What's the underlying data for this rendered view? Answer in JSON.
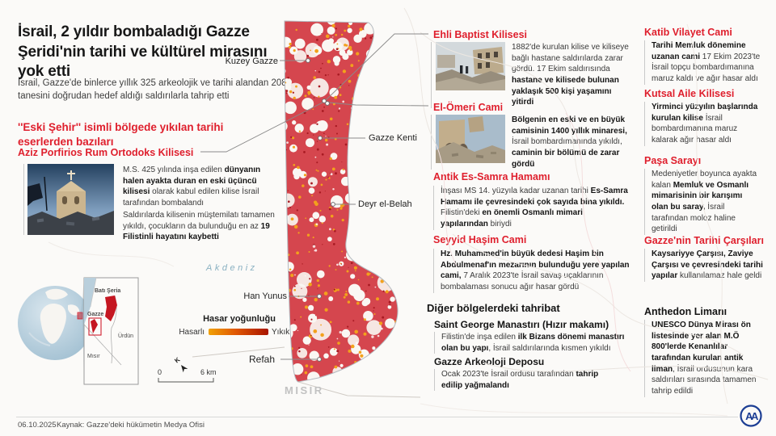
{
  "colors": {
    "accent_red": "#df1f2d",
    "map_red": "#d5464e",
    "damaged_orange": "#f3a11c",
    "destroyed_red": "#a81400",
    "aa_blue": "#1c3e94"
  },
  "header": {
    "title": "İsrail, 2 yıldır bombaladığı Gazze Şeridi'nin tarihi ve kültürel mirasını yok etti",
    "subtitle": "İsrail, Gazze'de binlerce yıllık 325 arkeolojik ve tarihi alandan 208 tanesini doğrudan hedef aldığı saldırılarla tahrip etti"
  },
  "old_city": {
    "heading": "''Eski Şehir'' isimli bölgede yıkılan tarihi eserlerden bazıları",
    "site_name": "Aziz Porfirios Rum Ortodoks Kilisesi",
    "p1": [
      {
        "t": "M.S. 425 yılında inşa edilen ",
        "b": false
      },
      {
        "t": "dünyanın halen ayakta duran en eski üçüncü kilisesi",
        "b": true
      },
      {
        "t": " olarak kabul edilen kilise İsrail tarafından bombalandı",
        "b": false
      }
    ],
    "p2": [
      {
        "t": "Saldırılarda kilisenin müştemilatı tamamen yıkıldı, çocukların da bulunduğu en az ",
        "b": false
      },
      {
        "t": "19 Filistinli hayatını kaybetti",
        "b": true
      }
    ]
  },
  "gaza_city_sites": {
    "ehli": {
      "name": "Ehli Baptist Kilisesi",
      "segments": [
        {
          "t": "1882'de kurulan kilise ve kiliseye bağlı hastane saldırılarda zarar gördü. 17 Ekim saldırısında ",
          "b": false
        },
        {
          "t": "hastane ve kilisede bulunan yaklaşık 500 kişi yaşamını yitirdi",
          "b": true
        }
      ]
    },
    "omeri": {
      "name": "El-Ömeri Cami",
      "segments": [
        {
          "t": "Bölgenin en eski ve en büyük camisinin 1400 yıllık minaresi,",
          "b": true
        },
        {
          "t": " İsrail bombardımanında yıkıldı, ",
          "b": false
        },
        {
          "t": "caminin bir bölümü de zarar gördü",
          "b": true
        }
      ]
    },
    "samra": {
      "name": "Antik Es-Samra Hamamı",
      "segments": [
        {
          "t": "İnşası MS 14. yüzyıla kadar uzanan tarihi ",
          "b": false
        },
        {
          "t": "Es-Samra Hamamı ile çevresindeki çok sayıda bina yıkıldı.",
          "b": true
        },
        {
          "t": " Filistin'deki ",
          "b": false
        },
        {
          "t": "en önemli Osmanlı mimari yapılarından",
          "b": true
        },
        {
          "t": " biriydi",
          "b": false
        }
      ]
    },
    "seyyid": {
      "name": "Seyyid Haşim Cami",
      "segments": [
        {
          "t": "Hz. Muhammed'in büyük dedesi Haşim bin Abdulmenaf'ın mezarının bulunduğu yere yapılan cami,",
          "b": true
        },
        {
          "t": " 7 Aralık 2023'te İsrail savaş uçaklarının bombalaması sonucu ağır hasar gördü",
          "b": false
        }
      ]
    }
  },
  "right_column": {
    "katib": {
      "name": "Katib Vilayet Cami",
      "segments": [
        {
          "t": "Tarihi Memluk dönemine uzanan cami",
          "b": true
        },
        {
          "t": " 17 Ekim 2023'te İsrail topçu bombardımanına maruz kaldı ve ağır hasar aldı",
          "b": false
        }
      ]
    },
    "kutsal": {
      "name": "Kutsal Aile Kilisesi",
      "segments": [
        {
          "t": "Yirminci yüzyılın başlarında kurulan kilise",
          "b": true
        },
        {
          "t": " İsrail bombardımanına maruz kalarak ağır hasar aldı",
          "b": false
        }
      ]
    },
    "pasa": {
      "name": "Paşa Sarayı",
      "segments": [
        {
          "t": "Medeniyetler boyunca ayakta kalan ",
          "b": false
        },
        {
          "t": "Memluk ve Osmanlı mimarisinin bir karışımı olan bu saray,",
          "b": true
        },
        {
          "t": " İsrail tarafından moloz haline getirildi",
          "b": false
        }
      ]
    },
    "carsilar": {
      "name": "Gazze'nin Tarihi Çarşıları",
      "segments": [
        {
          "t": "Kaysariyye Çarşısı, Zaviye Çarşısı ve çevresindeki tarihi yapılar",
          "b": true
        },
        {
          "t": " kullanılamaz hale geldi",
          "b": false
        }
      ]
    },
    "anthedon": {
      "name": "Anthedon Limanı",
      "segments": [
        {
          "t": "UNESCO Dünya Mirası ön listesinde yer alan M.Ö 800'lerde Kenanlılar tarafından kurulan antik liman",
          "b": true
        },
        {
          "t": ", İsrail ordusunun kara saldırıları sırasında tamamen tahrip edildi",
          "b": false
        }
      ]
    }
  },
  "other_regions": {
    "heading": "Diğer bölgelerdeki tahribat",
    "george": {
      "name": "Saint George Manastırı (Hızır makamı)",
      "segments": [
        {
          "t": "Filistin'de inşa edilen ",
          "b": false
        },
        {
          "t": "ilk Bizans dönemi manastırı olan bu yapı",
          "b": true
        },
        {
          "t": ", İsrail saldırılarında kısmen yıkıldı",
          "b": false
        }
      ]
    },
    "depo": {
      "name": "Gazze Arkeoloji Deposu",
      "segments": [
        {
          "t": "Ocak 2023'te İsrail ordusu tarafından ",
          "b": false
        },
        {
          "t": "tahrip edilip yağmalandı",
          "b": true
        }
      ]
    }
  },
  "map": {
    "sea_label": "Akdeniz",
    "egypt_label": "MISIR",
    "places": {
      "kuzey": "Kuzey Gazze",
      "kenti": "Gazze Kenti",
      "deyr": "Deyr el-Belah",
      "han": "Han Yunus",
      "refah": "Refah"
    },
    "legend": {
      "title": "Hasar yoğunluğu",
      "min": "Hasarlı",
      "max": "Yıkık"
    },
    "scale": {
      "start": "0",
      "end": "6 km"
    },
    "north_letter": "K"
  },
  "inset": {
    "west_bank": "Batı Şeria",
    "gaza": "Gazze",
    "jordan": "Ürdün",
    "egypt": "Mısır"
  },
  "footer": {
    "date": "06.10.2025",
    "source": "Kaynak: Gazze'deki hükümetin Medya Ofisi",
    "logo_text": "AA"
  }
}
